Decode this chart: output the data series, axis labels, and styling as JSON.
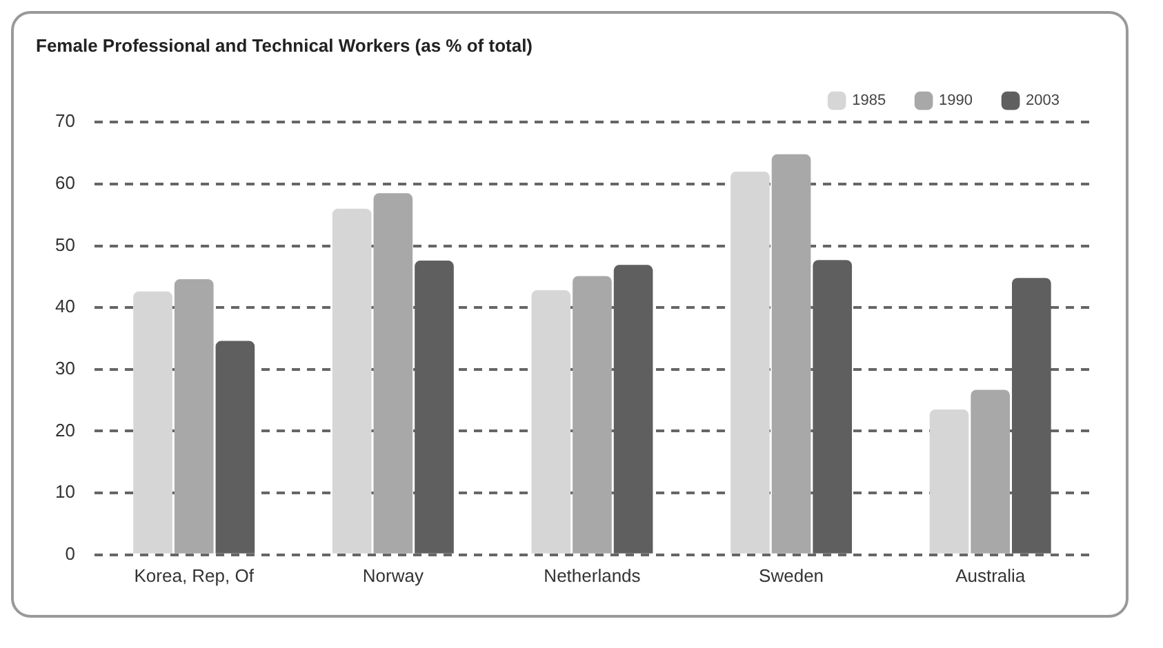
{
  "chart_data": {
    "type": "bar",
    "title": "Female Professional and Technical Workers (as % of total)",
    "categories": [
      "Korea, Rep, Of",
      "Norway",
      "Netherlands",
      "Sweden",
      "Australia"
    ],
    "series": [
      {
        "name": "1985",
        "color": "#d6d6d6",
        "values": [
          42.6,
          56,
          42.8,
          62,
          23.5
        ]
      },
      {
        "name": "1990",
        "color": "#a8a8a8",
        "values": [
          44.6,
          58.5,
          45.1,
          64.8,
          26.7
        ]
      },
      {
        "name": "2003",
        "color": "#5f5f5f",
        "values": [
          34.6,
          47.6,
          46.9,
          47.7,
          44.8
        ]
      }
    ],
    "ylim": [
      0,
      70
    ],
    "yticks": [
      0,
      10,
      20,
      30,
      40,
      50,
      60,
      70
    ],
    "grid": "y",
    "legend": "top right"
  }
}
